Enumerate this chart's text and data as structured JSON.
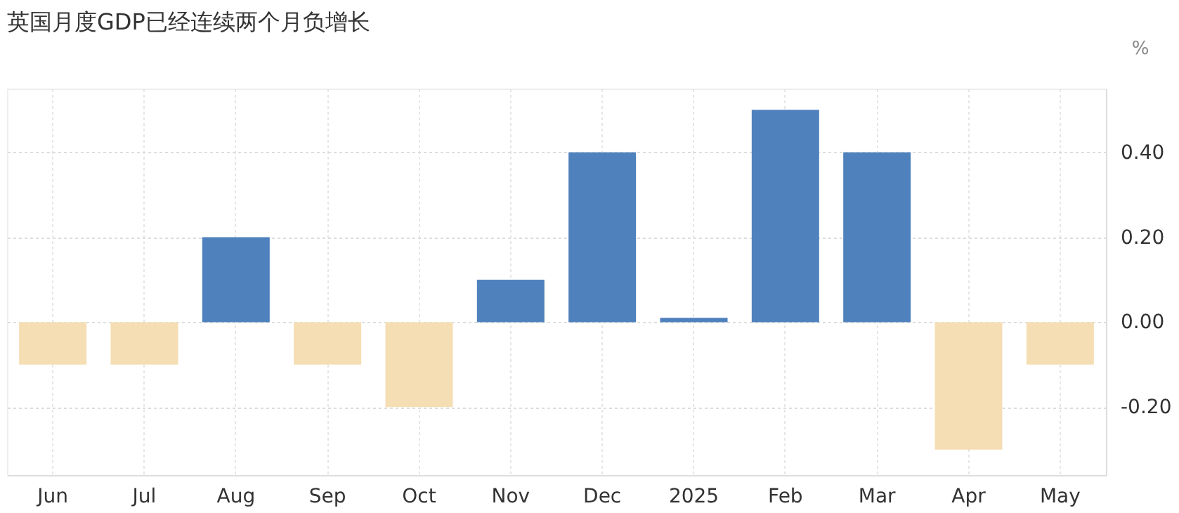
{
  "chart_data": {
    "type": "bar",
    "title": "英国月度GDP已经连续两个月负增长",
    "ylabel": "%",
    "categories": [
      "Jun",
      "Jul",
      "Aug",
      "Sep",
      "Oct",
      "Nov",
      "Dec",
      "2025",
      "Feb",
      "Mar",
      "Apr",
      "May"
    ],
    "values": [
      -0.1,
      -0.1,
      0.2,
      -0.1,
      -0.2,
      0.1,
      0.4,
      0.01,
      0.5,
      0.4,
      -0.3,
      -0.1
    ],
    "colors": [
      "#f5deb3",
      "#f5deb3",
      "#4f81bd",
      "#f5deb3",
      "#f5deb3",
      "#4f81bd",
      "#4f81bd",
      "#4f81bd",
      "#4f81bd",
      "#4f81bd",
      "#f5deb3",
      "#f5deb3"
    ],
    "ylim": [
      -0.36,
      0.55
    ],
    "yticks": [
      {
        "value": -0.2,
        "label": "-0.20"
      },
      {
        "value": 0,
        "label": "0.00"
      },
      {
        "value": 0.2,
        "label": "0.20"
      },
      {
        "value": 0.4,
        "label": "0.40"
      }
    ],
    "grid": true
  }
}
